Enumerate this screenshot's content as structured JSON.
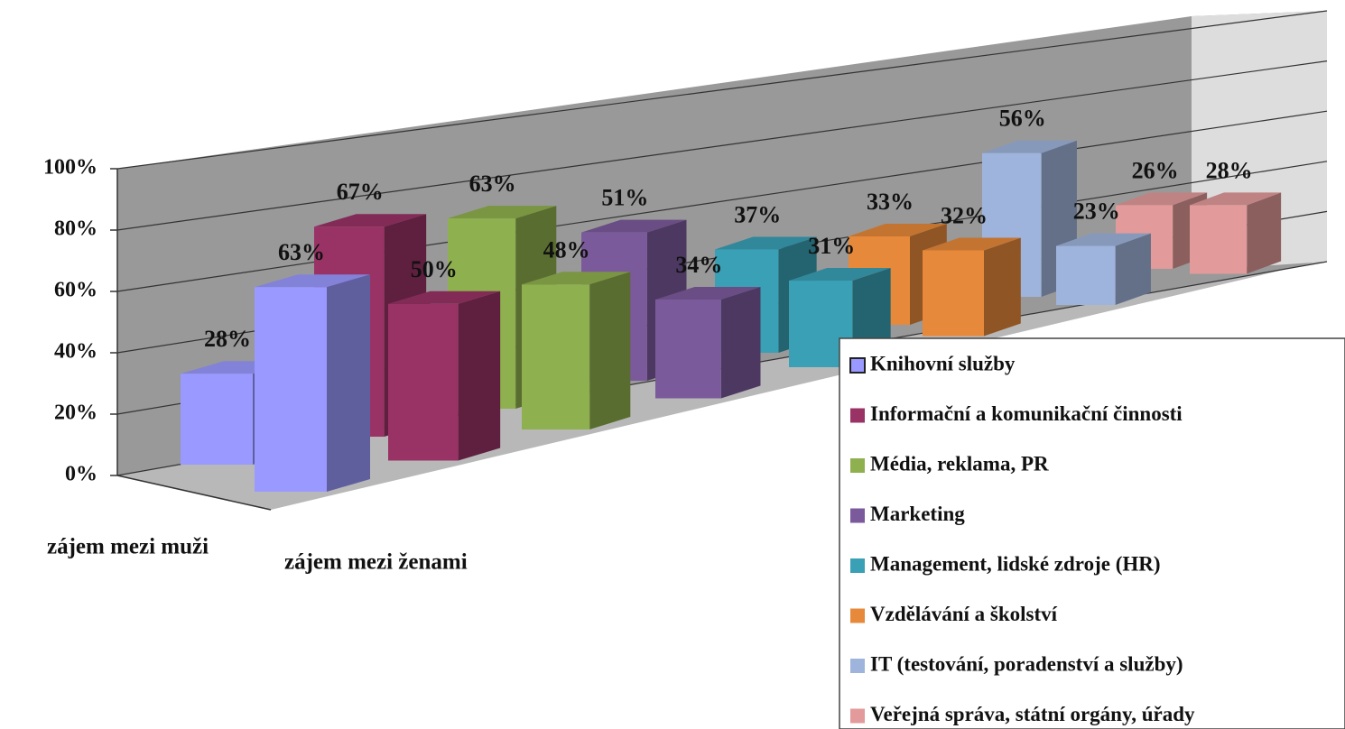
{
  "chart_data": {
    "type": "bar3d",
    "categories": [
      "zájem mezi muži",
      "zájem mezi ženami"
    ],
    "series": [
      {
        "name": "Knihovní služby",
        "color": "#9999ff",
        "values": [
          28,
          63
        ],
        "value_labels": [
          "28%",
          "63%"
        ]
      },
      {
        "name": "Informační a komunikační činnosti",
        "color": "#993366",
        "values": [
          67,
          50
        ],
        "value_labels": [
          "67%",
          "50%"
        ]
      },
      {
        "name": "Média, reklama, PR",
        "color": "#8fb04e",
        "values": [
          63,
          48
        ],
        "value_labels": [
          "63%",
          "48%"
        ]
      },
      {
        "name": "Marketing",
        "color": "#7b5a9b",
        "values": [
          51,
          34
        ],
        "value_labels": [
          "51%",
          "34%"
        ]
      },
      {
        "name": "Management, lidské zdroje (HR)",
        "color": "#3aa0b5",
        "values": [
          37,
          31
        ],
        "value_labels": [
          "37%",
          "31%"
        ]
      },
      {
        "name": "Vzdělávání a školství",
        "color": "#e6893a",
        "values": [
          33,
          32
        ],
        "value_labels": [
          "33%",
          "32%"
        ]
      },
      {
        "name": "IT (testování, poradenství a služby)",
        "color": "#9fb4dc",
        "values": [
          56,
          23
        ],
        "value_labels": [
          "56%",
          "23%"
        ]
      },
      {
        "name": "Veřejná správa, státní orgány, úřady",
        "color": "#e29a9a",
        "values": [
          26,
          28
        ],
        "value_labels": [
          "26%",
          "28%"
        ]
      }
    ],
    "ylim": [
      0,
      100
    ],
    "yticks": [
      {
        "value": 0,
        "label": "0%"
      },
      {
        "value": 20,
        "label": "20%"
      },
      {
        "value": 40,
        "label": "40%"
      },
      {
        "value": 60,
        "label": "60%"
      },
      {
        "value": 80,
        "label": "80%"
      },
      {
        "value": 100,
        "label": "100%"
      }
    ],
    "grid": true,
    "legend": "bottom-right"
  }
}
